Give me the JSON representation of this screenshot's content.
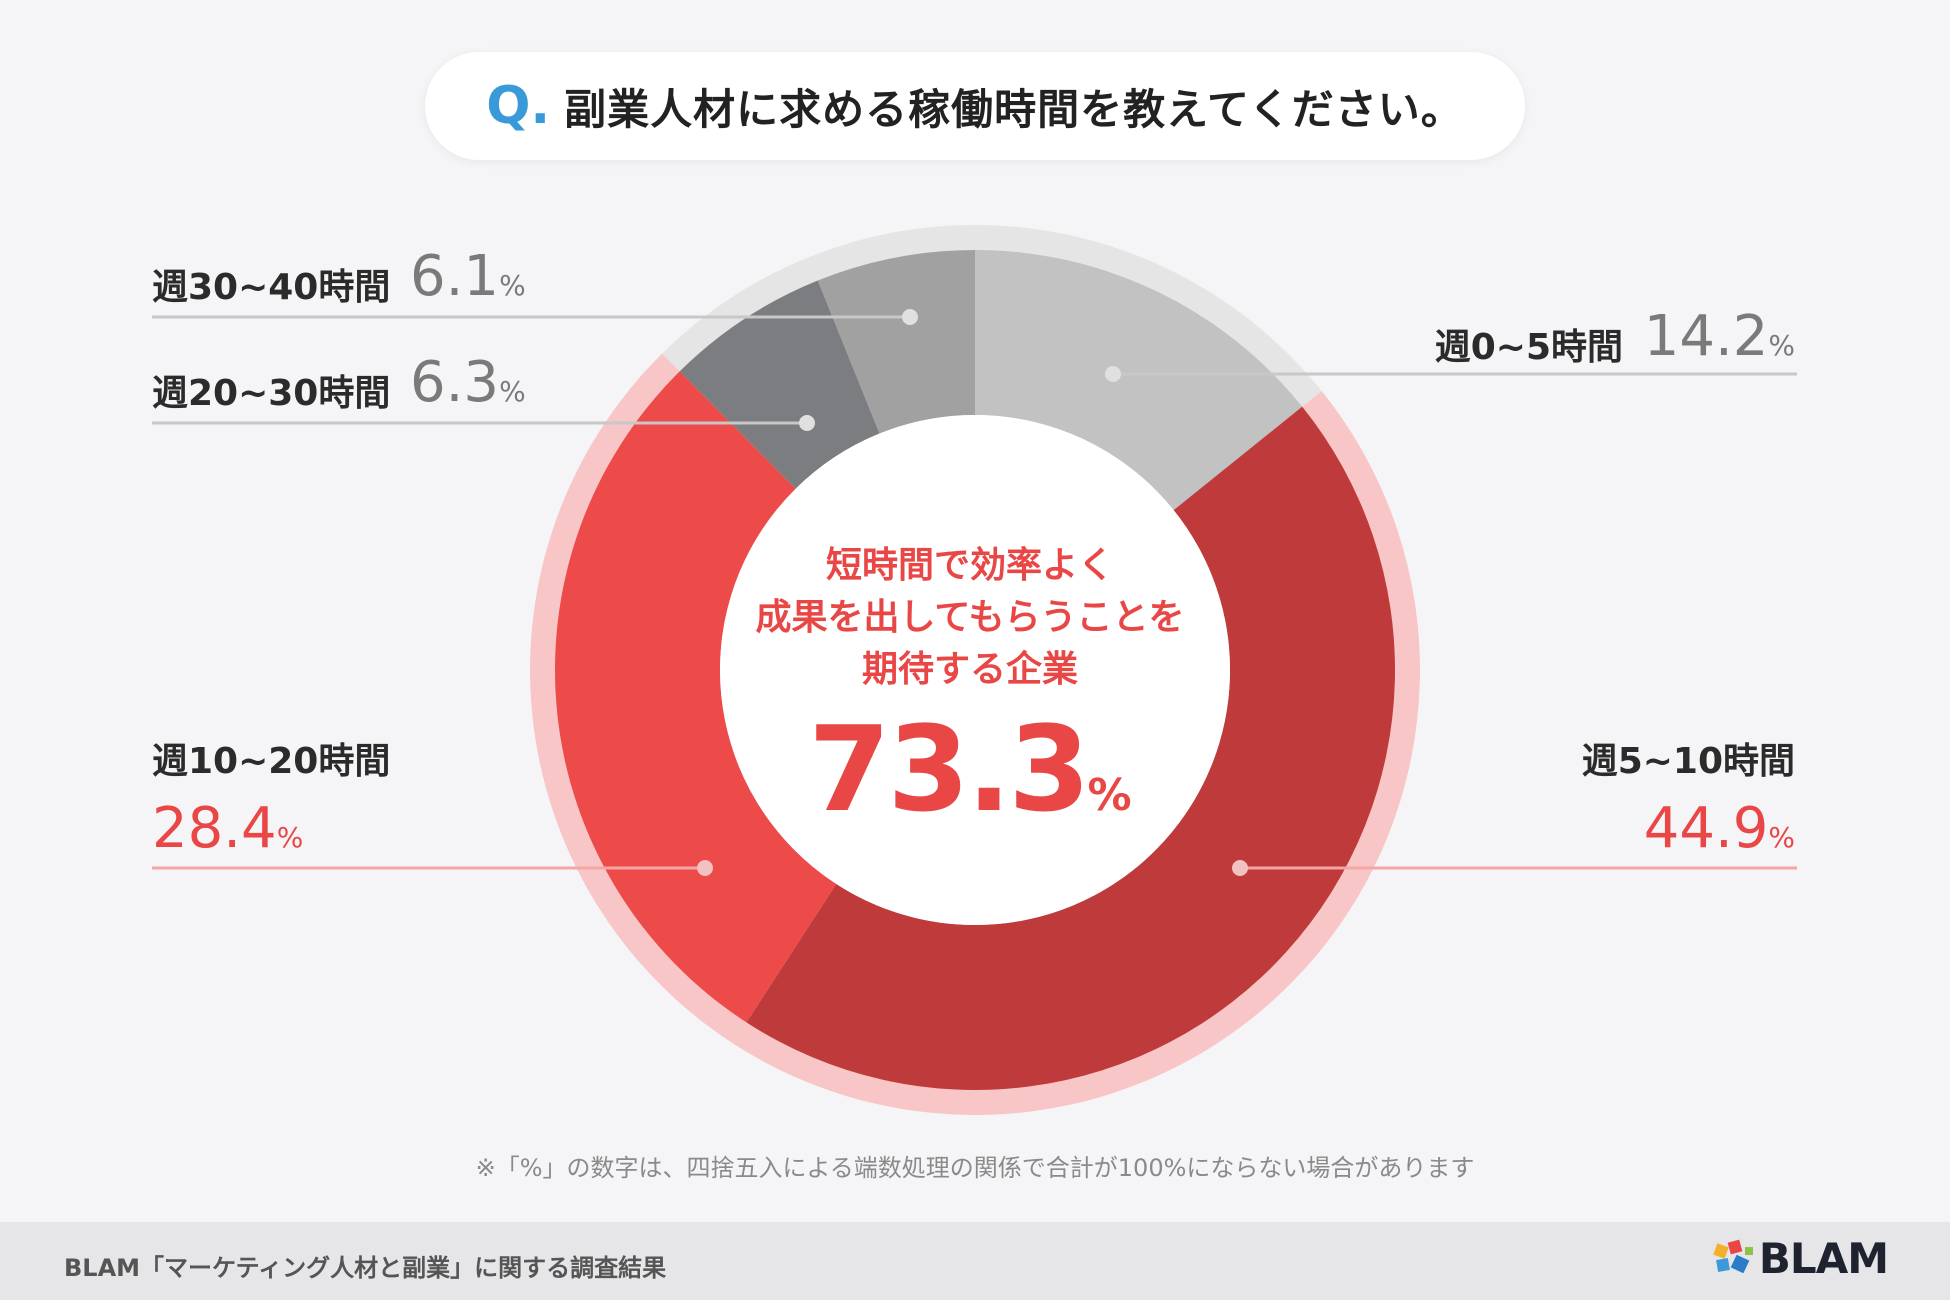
{
  "question": {
    "mark": "Q.",
    "text": "副業人材に求める稼働時間を教えてください。"
  },
  "center": {
    "lines": [
      "短時間で効率よく",
      "成果を出してもらうことを",
      "期待する企業"
    ],
    "value": "73.3",
    "unit": "%"
  },
  "colors": {
    "red_dark": "#bf3a3b",
    "red": "#ed4a4a",
    "gray_light": "#c2c2c2",
    "gray_mid": "#a1a1a1",
    "gray_dark": "#7c7d80",
    "ring_red": "#f8c6c6",
    "ring_gray": "#e5e5e5",
    "red_text": "#e94646",
    "gray_text": "#7a7a7a"
  },
  "chart_data": {
    "type": "pie",
    "categories": [
      "週0~5時間",
      "週5~10時間",
      "週10~20時間",
      "週20~30時間",
      "週30~40時間"
    ],
    "values": [
      14.2,
      44.9,
      28.4,
      6.3,
      6.1
    ],
    "unit": "%"
  },
  "labels": {
    "s0": {
      "name": "週0~5時間",
      "value": "14.2",
      "unit": "%"
    },
    "s1": {
      "name": "週5~10時間",
      "value": "44.9",
      "unit": "%"
    },
    "s2": {
      "name": "週10~20時間",
      "value": "28.4",
      "unit": "%"
    },
    "s3": {
      "name": "週20~30時間",
      "value": "6.3",
      "unit": "%"
    },
    "s4": {
      "name": "週30~40時間",
      "value": "6.1",
      "unit": "%"
    }
  },
  "footnote": "※「%」の数字は、四捨五入による端数処理の関係で合計が100%にならない場合があります",
  "footer": {
    "source": "BLAM「マーケティング人材と副業」に関する調査結果",
    "brand": "BLAM"
  }
}
